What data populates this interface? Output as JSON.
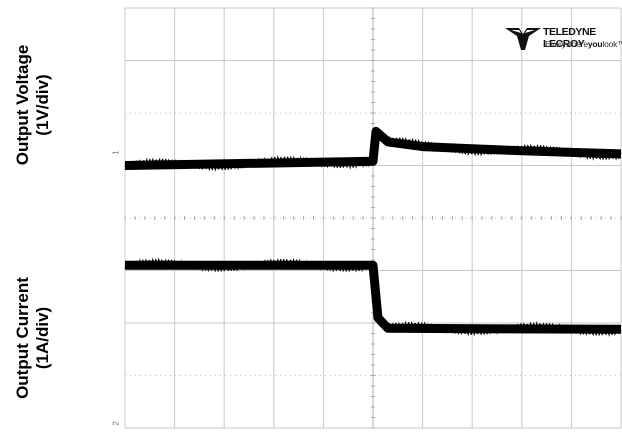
{
  "labels": {
    "voltage_line1": "Output Voltage",
    "voltage_line2": "(1V/div)",
    "current_line1": "Output Current",
    "current_line2": "(1A/div)"
  },
  "logo": {
    "brand": "TELEDYNE LECROY",
    "tagline_prefix": "Everywhere",
    "tagline_bold": "you",
    "tagline_suffix": "look"
  },
  "markers": {
    "ch1": "1",
    "ch2": "2"
  },
  "chart_data": {
    "type": "line",
    "grid": true,
    "x_divisions": 10,
    "y_divisions": 8,
    "event_division": 5,
    "series": [
      {
        "color": "#000000",
        "points_div": [
          [
            0,
            5.0
          ],
          [
            5.0,
            5.08
          ],
          [
            5.06,
            5.65
          ],
          [
            5.3,
            5.45
          ],
          [
            6,
            5.36
          ],
          [
            7,
            5.32
          ],
          [
            8,
            5.28
          ],
          [
            9,
            5.25
          ],
          [
            10,
            5.22
          ]
        ]
      },
      {
        "color": "#000000",
        "points_div": [
          [
            0,
            3.1
          ],
          [
            5.0,
            3.1
          ],
          [
            5.1,
            2.1
          ],
          [
            5.3,
            1.9
          ],
          [
            10,
            1.88
          ]
        ]
      }
    ]
  },
  "colors": {
    "grid": "#c8c8c8",
    "trace": "#000000",
    "background": "#ffffff"
  }
}
